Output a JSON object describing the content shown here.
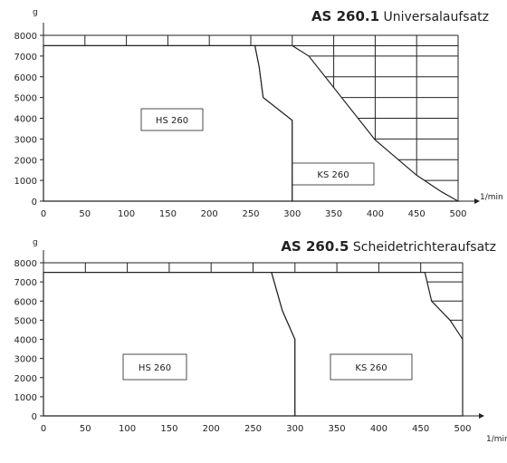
{
  "chart_data": [
    {
      "type": "area",
      "title_bold": "AS 260.1",
      "title_rest": " Universalaufsatz",
      "ylabel": "g",
      "xlabel": "1/min",
      "xlim": [
        0,
        500
      ],
      "ylim": [
        0,
        8000
      ],
      "xticks": [
        0,
        50,
        100,
        150,
        200,
        250,
        300,
        350,
        400,
        450,
        500
      ],
      "yticks": [
        0,
        1000,
        2000,
        3000,
        4000,
        5000,
        6000,
        7000,
        8000
      ],
      "max_load": 7500,
      "regions": [
        {
          "name": "HS 260",
          "pattern": "crosshatch",
          "points": [
            [
              0,
              0
            ],
            [
              0,
              7500
            ],
            [
              255,
              7500
            ],
            [
              260,
              6500
            ],
            [
              265,
              5000
            ],
            [
              300,
              3900
            ],
            [
              300,
              0
            ]
          ]
        },
        {
          "name": "KS 260",
          "pattern": "diagonal",
          "points": [
            [
              300,
              0
            ],
            [
              300,
              3900
            ],
            [
              265,
              5000
            ],
            [
              260,
              6500
            ],
            [
              255,
              7500
            ],
            [
              300,
              7500
            ],
            [
              320,
              7000
            ],
            [
              400,
              2950
            ],
            [
              450,
              1250
            ],
            [
              480,
              450
            ],
            [
              500,
              0
            ]
          ]
        }
      ]
    },
    {
      "type": "area",
      "title_bold": "AS 260.5",
      "title_rest": " Scheidetrichteraufsatz",
      "ylabel": "g",
      "xlabel": "1/min",
      "xlim": [
        0,
        500
      ],
      "ylim": [
        0,
        8000
      ],
      "xticks": [
        0,
        50,
        100,
        150,
        200,
        250,
        300,
        350,
        400,
        450,
        500
      ],
      "yticks": [
        0,
        1000,
        2000,
        3000,
        4000,
        5000,
        6000,
        7000,
        8000
      ],
      "max_load": 7500,
      "regions": [
        {
          "name": "HS 260",
          "pattern": "crosshatch",
          "points": [
            [
              0,
              0
            ],
            [
              0,
              7500
            ],
            [
              272,
              7500
            ],
            [
              285,
              5500
            ],
            [
              300,
              4000
            ],
            [
              300,
              0
            ]
          ]
        },
        {
          "name": "KS 260",
          "pattern": "diagonal",
          "points": [
            [
              300,
              0
            ],
            [
              300,
              4000
            ],
            [
              285,
              5500
            ],
            [
              272,
              7500
            ],
            [
              455,
              7500
            ],
            [
              463,
              6000
            ],
            [
              485,
              5000
            ],
            [
              500,
              4000
            ],
            [
              500,
              0
            ]
          ]
        }
      ]
    }
  ]
}
